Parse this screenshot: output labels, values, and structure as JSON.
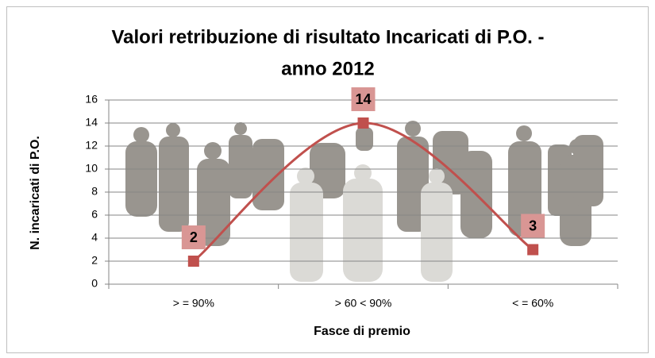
{
  "chart_data": {
    "type": "line",
    "title": "Valori retribuzione di risultato Incaricati di P.O. -",
    "subtitle": "anno 2012",
    "x_label": "Fasce di premio",
    "y_label": "N. incaricati di P.O.",
    "categories": [
      "> = 90%",
      "> 60 <  90%",
      "< = 60%"
    ],
    "values": [
      2,
      14,
      3
    ],
    "color": "#c0504d",
    "label_color": "#d99694",
    "smooth": true,
    "ylim": [
      0,
      16
    ],
    "yticks": [
      0,
      2,
      4,
      6,
      8,
      10,
      12,
      14,
      16
    ],
    "grid": true
  }
}
